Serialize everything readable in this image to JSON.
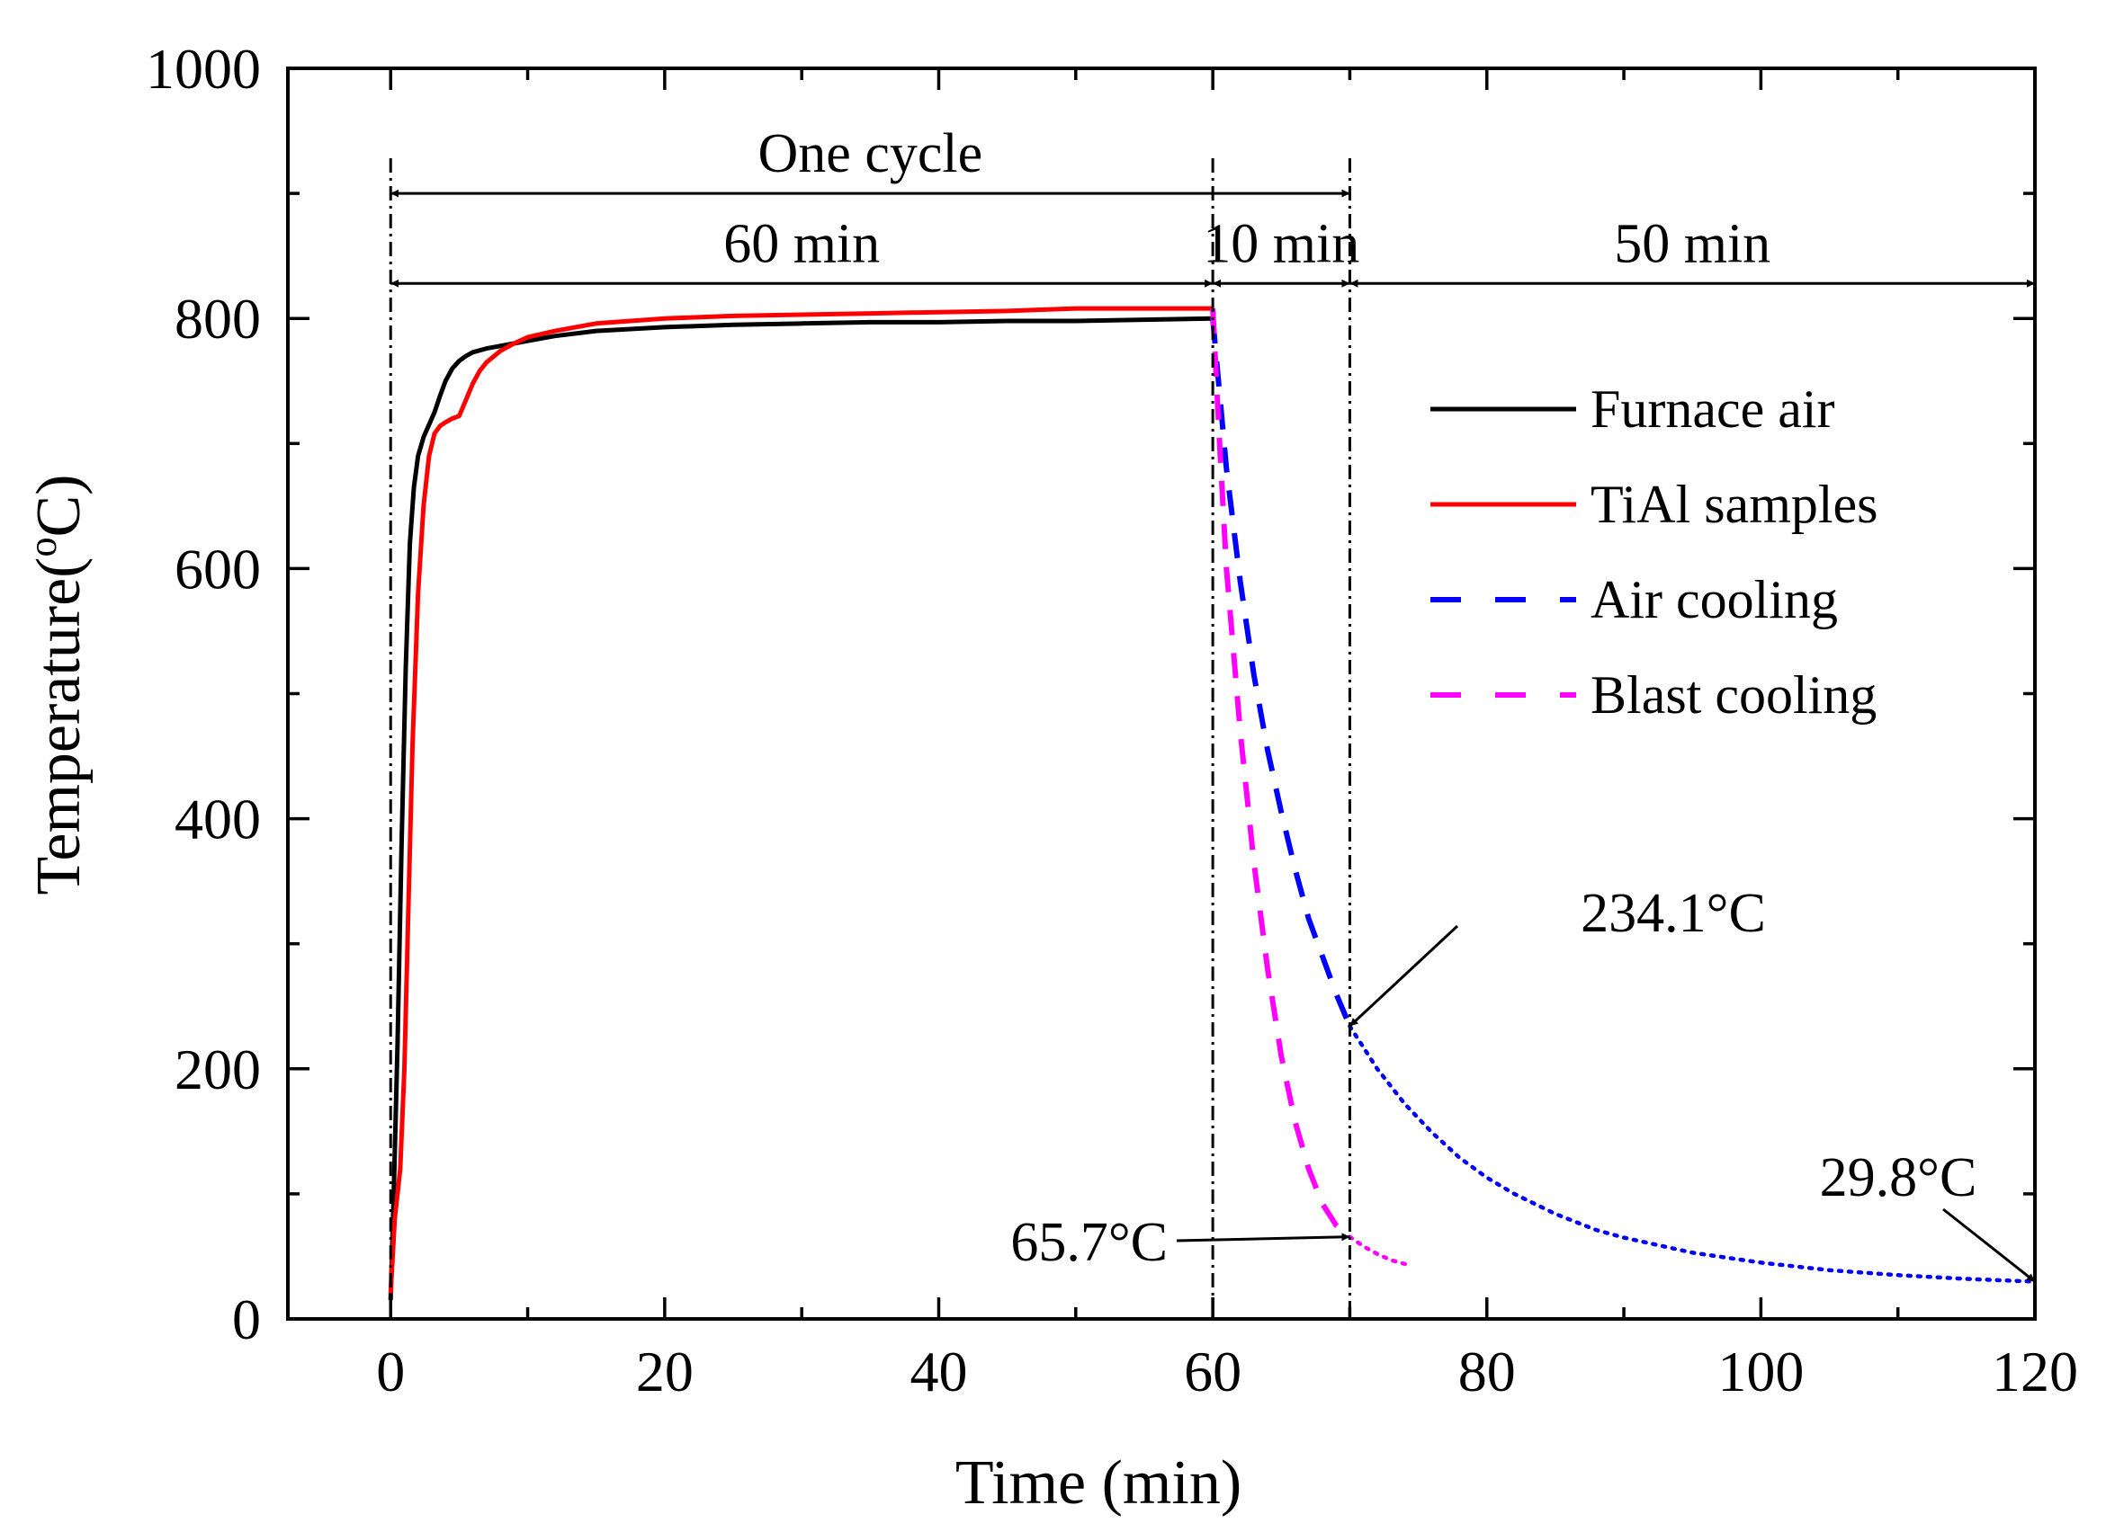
{
  "chart_data": {
    "type": "line",
    "xlabel": "Time (min)",
    "ylabel_main": "Temperature(",
    "ylabel_sup": "o",
    "ylabel_end": "C)",
    "xlim": [
      -7.5,
      120
    ],
    "ylim": [
      0,
      1000
    ],
    "x_ticks": [
      0,
      20,
      40,
      60,
      80,
      100,
      120
    ],
    "x_minor_ticks": [
      10,
      30,
      50,
      70,
      90,
      110
    ],
    "y_ticks": [
      0,
      200,
      400,
      600,
      800,
      1000
    ],
    "y_minor_ticks": [
      100,
      300,
      500,
      700,
      900
    ],
    "series": [
      {
        "name": "Furnace air",
        "color": "#000000",
        "style": "solid",
        "x": [
          0,
          0.2,
          0.5,
          0.8,
          1.1,
          1.4,
          1.7,
          2.0,
          2.4,
          2.8,
          3.2,
          3.6,
          4.0,
          4.5,
          5.0,
          5.5,
          6.0,
          7.0,
          8.0,
          9.0,
          10,
          12,
          15,
          20,
          25,
          30,
          35,
          40,
          45,
          50,
          55,
          60
        ],
        "values": [
          15,
          90,
          220,
          380,
          520,
          620,
          665,
          690,
          705,
          715,
          725,
          738,
          750,
          760,
          766,
          770,
          773,
          776,
          778,
          780,
          782,
          786,
          790,
          793,
          795,
          796,
          797,
          797,
          798,
          798,
          799,
          800
        ]
      },
      {
        "name": "TiAl samples",
        "color": "#ff0000",
        "style": "solid",
        "x": [
          0,
          0.3,
          0.7,
          1.0,
          1.3,
          1.6,
          2.0,
          2.4,
          2.8,
          3.2,
          3.6,
          4.0,
          4.5,
          5.0,
          5.5,
          6.0,
          6.5,
          7.0,
          8.0,
          9.0,
          10,
          12,
          15,
          20,
          25,
          30,
          35,
          40,
          45,
          50,
          55,
          60
        ],
        "values": [
          20,
          80,
          120,
          200,
          330,
          460,
          580,
          650,
          690,
          708,
          714,
          717,
          720,
          722,
          735,
          748,
          758,
          765,
          774,
          780,
          785,
          790,
          796,
          800,
          802,
          803,
          804,
          805,
          806,
          808,
          808,
          808
        ]
      },
      {
        "name": "Air cooling",
        "color": "#0000ff",
        "style": "dashed",
        "x": [
          60,
          60.5,
          61,
          62,
          63,
          64,
          65,
          66,
          67,
          68,
          69,
          70
        ],
        "values": [
          800,
          740,
          680,
          590,
          515,
          455,
          405,
          360,
          320,
          290,
          260,
          234.1
        ]
      },
      {
        "name": "Blast cooling",
        "color": "#ff00ff",
        "style": "dashed",
        "x": [
          60,
          60.5,
          61,
          62,
          63,
          64,
          65,
          66,
          67,
          68,
          69,
          70
        ],
        "values": [
          808,
          700,
          600,
          470,
          365,
          280,
          210,
          158,
          120,
          92,
          75,
          65.7
        ]
      },
      {
        "name": "Air cooling (continued)",
        "color": "#0000ff",
        "style": "dotted",
        "x": [
          70,
          72,
          74,
          76,
          78,
          80,
          82,
          85,
          88,
          90,
          95,
          100,
          105,
          110,
          115,
          120
        ],
        "values": [
          234.1,
          200,
          172,
          149,
          129,
          113,
          100,
          84,
          71,
          65,
          53,
          45,
          39,
          35,
          32,
          29.8
        ]
      },
      {
        "name": "Blast cooling (continued)",
        "color": "#ff00ff",
        "style": "dotted",
        "x": [
          70,
          71,
          72,
          73,
          74,
          74.5
        ],
        "values": [
          65.7,
          58,
          52,
          47,
          44,
          42
        ]
      }
    ],
    "legend": {
      "position": "upper-right",
      "entries": [
        {
          "label": "Furnace air",
          "color": "#000000",
          "style": "solid"
        },
        {
          "label": "TiAl samples",
          "color": "#ff0000",
          "style": "solid"
        },
        {
          "label": "Air cooling",
          "color": "#0000ff",
          "style": "dashed"
        },
        {
          "label": "Blast cooling",
          "color": "#ff00ff",
          "style": "dashed"
        }
      ]
    },
    "reference_lines_x": [
      0,
      60,
      70
    ],
    "spans": [
      {
        "label": "One cycle",
        "x_start": 0,
        "x_end": 70,
        "y": 900
      },
      {
        "label": "60 min",
        "x_start": 0,
        "x_end": 60,
        "y": 828
      },
      {
        "label": "10 min",
        "x_start": 60,
        "x_end": 70,
        "y": 828
      },
      {
        "label": "50 min",
        "x_start": 70,
        "x_end": 120,
        "y": 828
      }
    ],
    "annotations": [
      {
        "label": "234.1°C",
        "x": 70,
        "y": 234.1
      },
      {
        "label": "65.7°C",
        "x": 70,
        "y": 65.7
      },
      {
        "label": "29.8°C",
        "x": 120,
        "y": 29.8
      }
    ]
  }
}
